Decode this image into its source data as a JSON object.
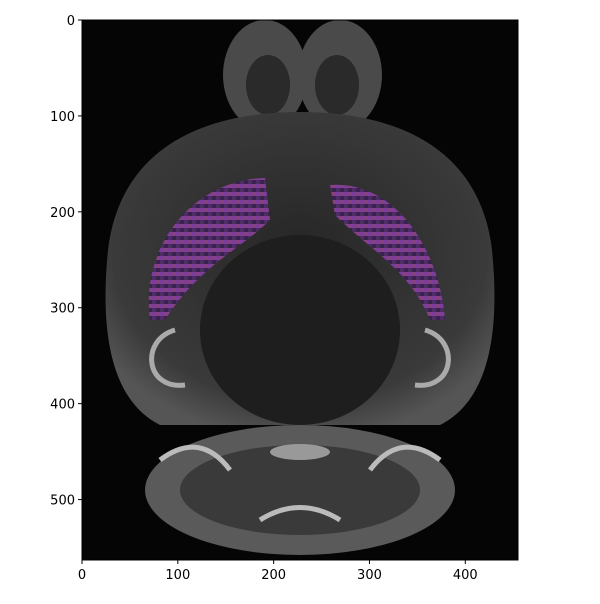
{
  "chart_data": {
    "type": "image",
    "xlim": [
      0,
      455
    ],
    "ylim": [
      563,
      0
    ],
    "xticks": [
      0,
      100,
      200,
      300,
      400
    ],
    "yticks": [
      0,
      100,
      200,
      300,
      400,
      500
    ]
  }
}
